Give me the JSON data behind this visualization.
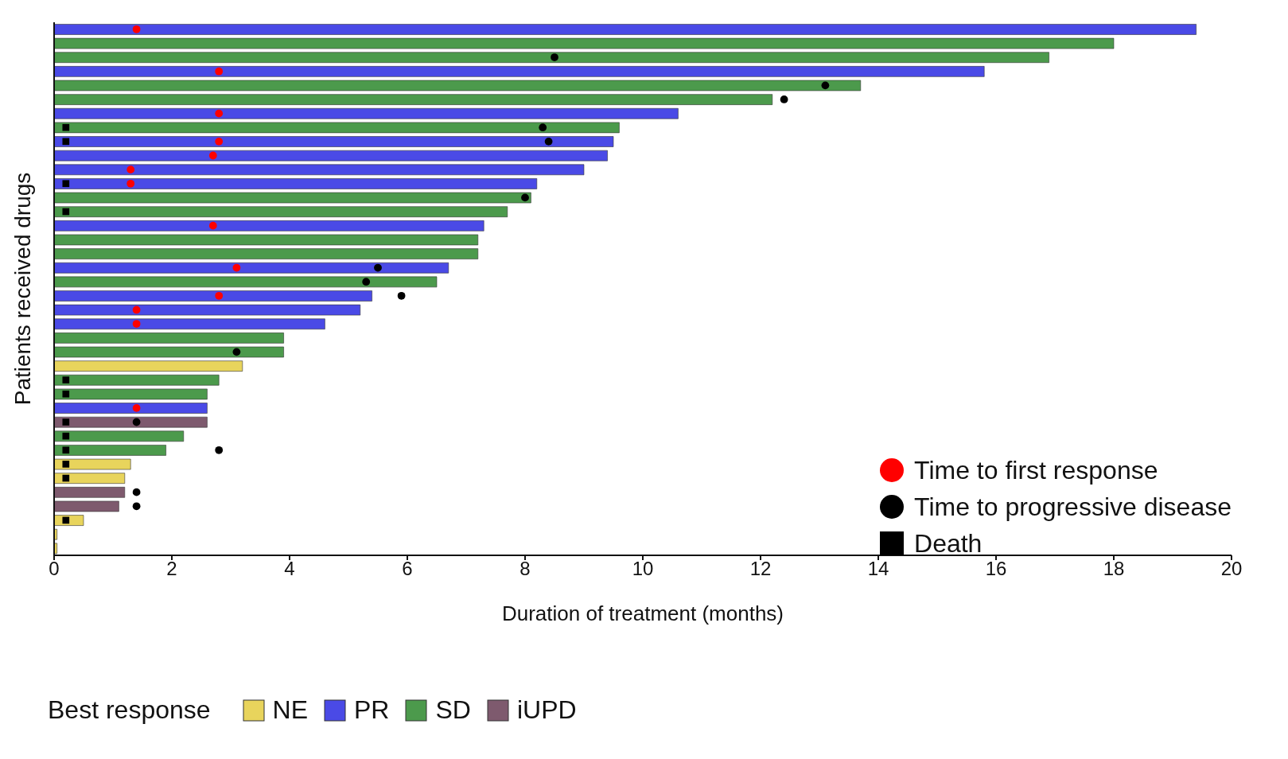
{
  "chart_data": {
    "type": "bar",
    "orientation": "horizontal",
    "stacked": true,
    "xlabel": "Duration of treatment (months)",
    "ylabel": "Patients received drugs",
    "legend_title": "Best response",
    "legend": "bottom",
    "tick_labels": "x",
    "grid": false,
    "xlim": [
      0,
      20
    ],
    "xticks": [
      0,
      2,
      4,
      6,
      8,
      10,
      12,
      14,
      16,
      18,
      20
    ],
    "categories": [
      null,
      null,
      null,
      null,
      null,
      null,
      null,
      null,
      null,
      null,
      null,
      null,
      null,
      null,
      null,
      null,
      null,
      null,
      null,
      null,
      null,
      null,
      null,
      null,
      null,
      null,
      null,
      null,
      null,
      null,
      null,
      null,
      null,
      null,
      null,
      null,
      null,
      null
    ],
    "series": [
      {
        "name": "NE",
        "type": "bar",
        "color": "#e8d45c",
        "values": [
          null,
          null,
          null,
          null,
          null,
          null,
          null,
          null,
          null,
          null,
          null,
          null,
          null,
          null,
          null,
          null,
          null,
          null,
          null,
          null,
          null,
          null,
          null,
          null,
          3.2,
          null,
          null,
          null,
          null,
          null,
          null,
          1.3,
          1.2,
          null,
          null,
          0.5,
          0.05,
          0.05
        ]
      },
      {
        "name": "PR",
        "type": "bar",
        "color": "#4a4ae6",
        "values": [
          19.4,
          null,
          null,
          15.8,
          null,
          null,
          10.6,
          null,
          9.5,
          9.4,
          9.0,
          8.2,
          null,
          null,
          7.3,
          null,
          null,
          6.7,
          null,
          5.4,
          5.2,
          4.6,
          null,
          null,
          null,
          null,
          null,
          2.6,
          null,
          null,
          null,
          null,
          null,
          null,
          null,
          null,
          null,
          null
        ]
      },
      {
        "name": "SD",
        "type": "bar",
        "color": "#4c9a4c",
        "values": [
          null,
          18.0,
          16.9,
          null,
          13.7,
          12.2,
          null,
          9.6,
          null,
          null,
          null,
          null,
          8.1,
          7.7,
          null,
          7.2,
          7.2,
          null,
          6.5,
          null,
          null,
          null,
          3.9,
          3.9,
          null,
          2.8,
          2.6,
          null,
          null,
          2.2,
          1.9,
          null,
          null,
          null,
          null,
          null,
          null,
          null
        ]
      },
      {
        "name": "iUPD",
        "type": "bar",
        "color": "#7e5a6e",
        "values": [
          null,
          null,
          null,
          null,
          null,
          null,
          null,
          null,
          null,
          null,
          null,
          null,
          null,
          null,
          null,
          null,
          null,
          null,
          null,
          null,
          null,
          null,
          null,
          null,
          null,
          null,
          null,
          null,
          2.6,
          null,
          null,
          null,
          null,
          1.2,
          1.1,
          null,
          null,
          null
        ]
      },
      {
        "name": "Time to first response",
        "type": "scatter",
        "marker": "circle",
        "color": "#ff0000",
        "values": [
          1.4,
          null,
          null,
          2.8,
          null,
          null,
          2.8,
          null,
          2.8,
          2.7,
          1.3,
          1.3,
          null,
          null,
          2.7,
          null,
          null,
          3.1,
          null,
          2.8,
          1.4,
          1.4,
          null,
          null,
          null,
          null,
          null,
          1.4,
          null,
          null,
          null,
          null,
          null,
          null,
          null,
          null,
          null,
          null
        ]
      },
      {
        "name": "Time to progressive disease",
        "type": "scatter",
        "marker": "circle",
        "color": "#000000",
        "values": [
          null,
          null,
          8.5,
          null,
          13.1,
          12.4,
          null,
          8.3,
          8.4,
          null,
          null,
          null,
          8.0,
          null,
          null,
          null,
          null,
          5.5,
          5.3,
          5.9,
          null,
          null,
          null,
          3.1,
          null,
          null,
          null,
          null,
          1.4,
          null,
          2.8,
          null,
          null,
          1.4,
          1.4,
          null,
          null,
          null
        ]
      },
      {
        "name": "Death",
        "type": "scatter",
        "marker": "square",
        "color": "#000000",
        "values": [
          null,
          null,
          null,
          null,
          null,
          null,
          null,
          0.2,
          0.2,
          null,
          null,
          0.2,
          null,
          0.2,
          null,
          null,
          null,
          null,
          null,
          null,
          null,
          null,
          null,
          null,
          null,
          0.2,
          0.2,
          null,
          0.2,
          0.2,
          0.2,
          0.2,
          0.2,
          null,
          null,
          0.2,
          null,
          null
        ]
      }
    ]
  }
}
